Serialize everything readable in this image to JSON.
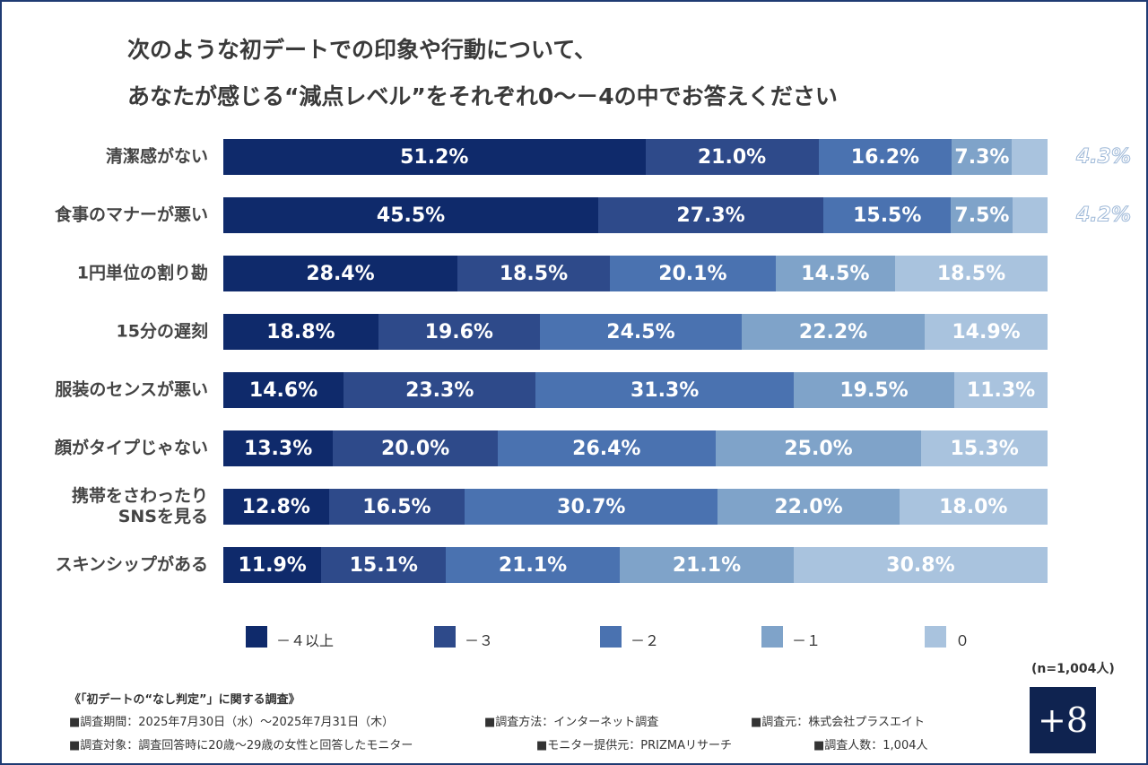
{
  "chart_data": {
    "type": "stacked-bar-horizontal",
    "title": [
      "次のような初デートでの印象や行動について、",
      "あなたが感じる“減点レベル”をそれぞれ0〜－4の中でお答えください"
    ],
    "categories": [
      "清潔感がない",
      "食事のマナーが悪い",
      "1円単位の割り勘",
      "15分の遅刻",
      "服装のセンスが悪い",
      "顔がタイプじゃない",
      "携帯をさわったり\nSNSを見る",
      "スキンシップがある"
    ],
    "xlim": [
      0,
      100
    ],
    "series": [
      {
        "name": "－４以上",
        "color": "#0f2a6b",
        "values": [
          51.2,
          45.5,
          28.4,
          18.8,
          14.6,
          13.3,
          12.8,
          11.9
        ],
        "value_labels": [
          "51.2%",
          "45.5%",
          "28.4%",
          "18.8%",
          "14.6%",
          "13.3%",
          "12.8%",
          "11.9%"
        ]
      },
      {
        "name": "－３",
        "color": "#2e4a8a",
        "values": [
          21.0,
          27.3,
          18.5,
          19.6,
          23.3,
          20.0,
          16.5,
          15.1
        ],
        "value_labels": [
          "21.0%",
          "27.3%",
          "18.5%",
          "19.6%",
          "23.3%",
          "20.0%",
          "16.5%",
          "15.1%"
        ]
      },
      {
        "name": "－２",
        "color": "#4a72b0",
        "values": [
          16.2,
          15.5,
          20.1,
          24.5,
          31.3,
          26.4,
          30.7,
          21.1
        ],
        "value_labels": [
          "16.2%",
          "15.5%",
          "20.1%",
          "24.5%",
          "31.3%",
          "26.4%",
          "30.7%",
          "21.1%"
        ]
      },
      {
        "name": "－１",
        "color": "#7fa3c9",
        "values": [
          7.3,
          7.5,
          14.5,
          22.2,
          19.5,
          25.0,
          22.0,
          21.1
        ],
        "value_labels": [
          "7.3%",
          "7.5%",
          "14.5%",
          "22.2%",
          "19.5%",
          "25.0%",
          "22.0%",
          "21.1%"
        ]
      },
      {
        "name": "０",
        "color": "#a9c3de",
        "values": [
          4.3,
          4.2,
          18.5,
          14.9,
          11.3,
          15.3,
          18.0,
          30.8
        ],
        "value_labels": [
          "4.3%",
          "4.2%",
          "18.5%",
          "14.9%",
          "11.3%",
          "15.3%",
          "18.0%",
          "30.8%"
        ]
      }
    ],
    "note": "(n=1,004人)"
  },
  "footer": {
    "title": "《「初デートの“なし判定”」に関する調査》",
    "items": [
      "■調査期間：2025年7月30日（水）〜2025年7月31日（木）",
      "■調査方法：インターネット調査",
      "■調査元：株式会社プラスエイト",
      "■調査対象：調査回答時に20歳〜29歳の女性と回答したモニター",
      "■モニター提供元：PRIZMAリサーチ",
      "■調査人数：1,004人"
    ],
    "logo": "+8"
  }
}
